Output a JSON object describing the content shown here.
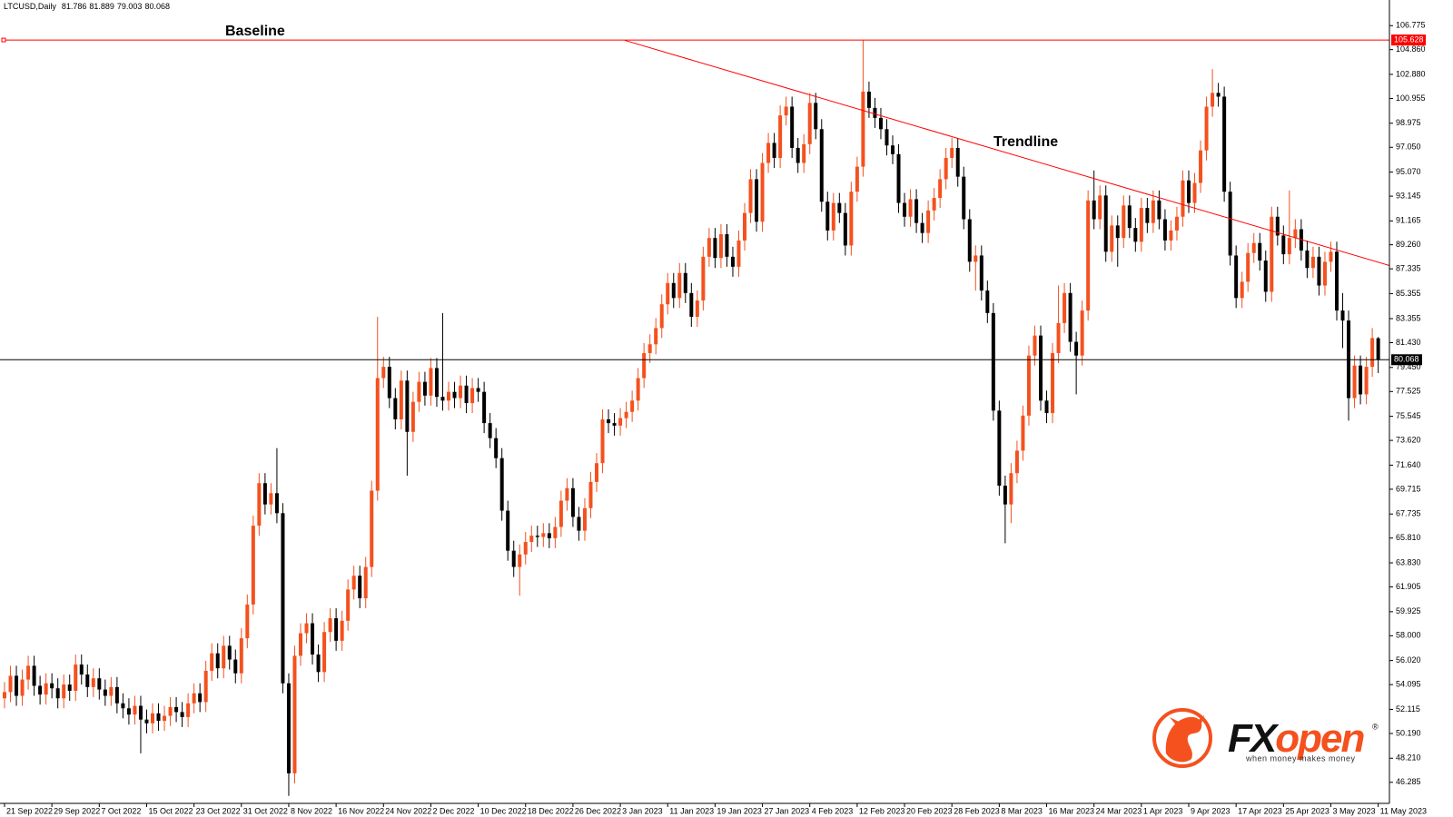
{
  "chart_data": {
    "type": "candlestick",
    "title": "LTCUSD,Daily",
    "header_values": [
      81.786,
      81.889,
      79.003,
      80.068
    ],
    "up_color": "#f4511e",
    "down_color": "#000000",
    "categories": [
      "21 Sep 2022",
      null,
      null,
      null,
      null,
      null,
      null,
      null,
      "29 Sep 2022",
      null,
      null,
      null,
      null,
      null,
      null,
      null,
      "7 Oct 2022",
      null,
      null,
      null,
      null,
      null,
      null,
      null,
      "15 Oct 2022",
      null,
      null,
      null,
      null,
      null,
      null,
      null,
      "23 Oct 2022",
      null,
      null,
      null,
      null,
      null,
      null,
      null,
      "31 Oct 2022",
      null,
      null,
      null,
      null,
      null,
      null,
      null,
      "8 Nov 2022",
      null,
      null,
      null,
      null,
      null,
      null,
      null,
      "16 Nov 2022",
      null,
      null,
      null,
      null,
      null,
      null,
      null,
      "24 Nov 2022",
      null,
      null,
      null,
      null,
      null,
      null,
      null,
      "2 Dec 2022",
      null,
      null,
      null,
      null,
      null,
      null,
      null,
      "10 Dec 2022",
      null,
      null,
      null,
      null,
      null,
      null,
      null,
      "18 Dec 2022",
      null,
      null,
      null,
      null,
      null,
      null,
      null,
      "26 Dec 2022",
      null,
      null,
      null,
      null,
      null,
      null,
      null,
      "3 Jan 2023",
      null,
      null,
      null,
      null,
      null,
      null,
      null,
      "11 Jan 2023",
      null,
      null,
      null,
      null,
      null,
      null,
      null,
      "19 Jan 2023",
      null,
      null,
      null,
      null,
      null,
      null,
      null,
      "27 Jan 2023",
      null,
      null,
      null,
      null,
      null,
      null,
      null,
      "4 Feb 2023",
      null,
      null,
      null,
      null,
      null,
      null,
      null,
      "12 Feb 2023",
      null,
      null,
      null,
      null,
      null,
      null,
      null,
      "20 Feb 2023",
      null,
      null,
      null,
      null,
      null,
      null,
      null,
      "28 Feb 2023",
      null,
      null,
      null,
      null,
      null,
      null,
      null,
      "8 Mar 2023",
      null,
      null,
      null,
      null,
      null,
      null,
      null,
      "16 Mar 2023",
      null,
      null,
      null,
      null,
      null,
      null,
      null,
      "24 Mar 2023",
      null,
      null,
      null,
      null,
      null,
      null,
      null,
      "1 Apr 2023",
      null,
      null,
      null,
      null,
      null,
      null,
      null,
      "9 Apr 2023",
      null,
      null,
      null,
      null,
      null,
      null,
      null,
      "17 Apr 2023",
      null,
      null,
      null,
      null,
      null,
      null,
      null,
      "25 Apr 2023",
      null,
      null,
      null,
      null,
      null,
      null,
      null,
      "3 May 2023",
      null,
      null,
      null,
      null,
      null,
      null,
      null,
      "11 May 2023"
    ],
    "open": [
      53.0,
      53.5,
      54.8,
      53.2,
      54.5,
      55.6,
      54.0,
      53.3,
      54.2,
      53.8,
      53.0,
      54.1,
      53.6,
      55.7,
      54.9,
      53.9,
      54.6,
      53.7,
      53.2,
      53.9,
      52.6,
      52.2,
      51.7,
      52.4,
      51.3,
      51.0,
      51.8,
      51.2,
      51.6,
      52.3,
      51.9,
      51.5,
      52.6,
      53.4,
      52.7,
      55.2,
      56.6,
      55.4,
      57.2,
      56.1,
      55.0,
      57.8,
      60.5,
      66.8,
      70.2,
      68.5,
      69.4,
      67.8,
      54.2,
      47.0,
      56.4,
      58.2,
      59.0,
      56.5,
      55.1,
      58.3,
      59.4,
      57.6,
      59.2,
      61.7,
      62.8,
      61.0,
      63.5,
      69.6,
      78.6,
      79.5,
      77.0,
      75.3,
      78.4,
      74.3,
      76.7,
      78.3,
      77.2,
      79.4,
      77.1,
      76.8,
      77.5,
      77.0,
      78.0,
      76.6,
      77.8,
      77.5,
      75.0,
      73.8,
      72.2,
      68.0,
      64.8,
      63.5,
      64.5,
      65.5,
      66.0,
      65.9,
      66.2,
      65.8,
      66.7,
      68.8,
      69.8,
      67.5,
      66.4,
      68.2,
      70.3,
      71.8,
      75.3,
      75.0,
      74.8,
      75.4,
      75.9,
      76.8,
      78.6,
      80.6,
      81.3,
      82.6,
      84.5,
      86.2,
      85.0,
      87.0,
      85.4,
      83.5,
      84.8,
      88.3,
      89.8,
      88.2,
      90.1,
      88.3,
      87.5,
      89.6,
      91.8,
      94.5,
      91.1,
      95.8,
      97.4,
      96.2,
      99.6,
      100.3,
      97.0,
      95.8,
      97.3,
      100.6,
      98.5,
      92.7,
      90.4,
      92.6,
      91.8,
      89.2,
      93.5,
      95.5,
      101.5,
      100.2,
      99.4,
      98.5,
      97.2,
      96.5,
      92.6,
      91.5,
      92.9,
      91.0,
      90.2,
      92.0,
      93.0,
      94.5,
      96.2,
      97.0,
      94.7,
      91.3,
      87.9,
      88.4,
      85.6,
      83.8,
      76.0,
      70.0,
      68.5,
      71.0,
      72.8,
      75.6,
      80.4,
      82.0,
      76.8,
      75.8,
      80.6,
      83.0,
      85.4,
      81.5,
      80.4,
      84.0,
      92.8,
      91.3,
      93.2,
      88.7,
      90.8,
      89.8,
      92.4,
      90.6,
      89.5,
      92.2,
      91.0,
      92.8,
      91.3,
      89.6,
      90.4,
      91.5,
      94.4,
      92.6,
      94.2,
      96.8,
      100.3,
      101.4,
      101.1,
      93.5,
      88.4,
      85.0,
      86.3,
      88.6,
      89.4,
      88.0,
      85.5,
      91.5,
      90.0,
      88.5,
      89.8,
      90.5,
      88.8,
      87.4,
      88.3,
      86.0,
      87.9,
      88.7,
      84.0,
      83.2,
      77.0,
      79.6,
      77.3,
      79.5,
      81.786
    ],
    "high": [
      54.3,
      55.6,
      55.6,
      55.3,
      56.4,
      56.4,
      54.8,
      55.0,
      55.0,
      54.6,
      54.9,
      54.9,
      56.5,
      56.5,
      55.7,
      55.4,
      55.4,
      54.5,
      54.7,
      54.7,
      53.4,
      53.0,
      53.2,
      53.2,
      52.1,
      52.6,
      52.6,
      52.4,
      53.1,
      53.1,
      52.7,
      53.4,
      54.2,
      54.2,
      56.0,
      57.4,
      57.4,
      58.0,
      58.0,
      56.9,
      58.6,
      61.3,
      67.6,
      71.0,
      71.0,
      70.2,
      73.0,
      68.6,
      55.0,
      57.2,
      59.0,
      59.8,
      59.8,
      57.3,
      59.1,
      60.2,
      60.2,
      60.0,
      62.5,
      63.6,
      63.6,
      64.3,
      70.4,
      83.5,
      80.3,
      80.3,
      77.8,
      79.2,
      79.2,
      77.5,
      79.1,
      79.1,
      80.2,
      80.2,
      83.8,
      78.3,
      78.3,
      78.8,
      78.8,
      78.6,
      78.6,
      78.3,
      75.8,
      74.6,
      73.0,
      68.8,
      65.6,
      65.3,
      66.3,
      66.8,
      66.8,
      67.0,
      67.0,
      67.5,
      69.6,
      70.6,
      70.6,
      68.3,
      69.0,
      71.1,
      72.6,
      76.1,
      76.1,
      75.8,
      76.2,
      76.7,
      77.6,
      79.4,
      81.4,
      82.1,
      83.4,
      85.3,
      87.0,
      87.0,
      87.8,
      87.8,
      86.2,
      85.6,
      89.1,
      90.6,
      90.6,
      90.9,
      90.9,
      89.1,
      90.4,
      92.6,
      95.3,
      95.3,
      96.6,
      98.2,
      98.2,
      100.4,
      101.1,
      101.1,
      97.8,
      98.1,
      101.4,
      101.4,
      99.3,
      93.5,
      93.4,
      93.4,
      92.6,
      94.3,
      96.3,
      105.6,
      102.3,
      101.0,
      100.2,
      99.3,
      98.0,
      97.3,
      93.4,
      93.7,
      93.7,
      91.8,
      92.8,
      93.8,
      95.3,
      97.0,
      97.8,
      97.8,
      95.5,
      92.1,
      89.2,
      89.2,
      86.4,
      84.6,
      76.8,
      70.8,
      71.8,
      73.6,
      76.4,
      81.2,
      82.8,
      82.8,
      77.6,
      81.4,
      86.0,
      86.2,
      86.2,
      82.3,
      84.8,
      93.6,
      95.2,
      94.0,
      94.0,
      91.6,
      91.6,
      93.2,
      93.2,
      91.4,
      93.0,
      93.0,
      93.6,
      93.6,
      92.1,
      91.2,
      92.3,
      95.2,
      95.2,
      95.0,
      97.6,
      101.1,
      103.3,
      102.2,
      101.9,
      94.3,
      89.2,
      87.1,
      89.4,
      90.2,
      90.2,
      88.8,
      92.3,
      92.3,
      90.8,
      93.6,
      91.3,
      91.3,
      89.6,
      89.1,
      89.1,
      88.7,
      89.5,
      89.5,
      85.4,
      84.0,
      80.4,
      80.4,
      80.3,
      82.6,
      81.889
    ],
    "low": [
      52.2,
      52.7,
      52.4,
      52.4,
      53.7,
      53.2,
      52.5,
      52.5,
      53.0,
      52.2,
      52.2,
      52.8,
      52.8,
      54.1,
      53.1,
      53.1,
      52.9,
      52.4,
      52.4,
      51.8,
      51.4,
      50.9,
      50.9,
      48.6,
      50.2,
      50.2,
      50.4,
      50.4,
      50.8,
      51.1,
      50.7,
      50.7,
      51.8,
      51.9,
      51.9,
      54.4,
      54.6,
      54.6,
      55.3,
      54.2,
      54.2,
      57.0,
      59.7,
      66.0,
      67.7,
      67.7,
      67.0,
      53.4,
      45.2,
      46.2,
      55.6,
      57.4,
      55.7,
      54.3,
      54.3,
      57.5,
      56.8,
      56.8,
      58.4,
      60.9,
      60.2,
      60.2,
      62.7,
      68.8,
      77.8,
      76.2,
      74.5,
      74.5,
      70.8,
      73.5,
      75.9,
      76.4,
      76.4,
      76.3,
      76.0,
      76.0,
      76.2,
      76.2,
      75.8,
      75.8,
      76.7,
      74.2,
      73.0,
      71.4,
      67.2,
      64.0,
      62.7,
      61.2,
      63.7,
      64.7,
      65.1,
      65.1,
      65.0,
      65.0,
      65.9,
      68.0,
      66.7,
      65.6,
      65.6,
      67.4,
      69.5,
      71.0,
      74.2,
      74.0,
      74.0,
      74.6,
      75.1,
      76.0,
      77.8,
      79.8,
      80.5,
      81.8,
      83.7,
      84.2,
      84.2,
      84.6,
      82.7,
      82.7,
      84.0,
      87.5,
      87.4,
      87.4,
      87.5,
      86.7,
      86.7,
      88.8,
      91.0,
      90.3,
      90.3,
      95.0,
      95.4,
      95.4,
      98.8,
      96.2,
      95.0,
      95.0,
      96.5,
      97.7,
      91.9,
      89.6,
      89.6,
      91.0,
      88.4,
      88.4,
      92.7,
      94.7,
      99.4,
      98.6,
      97.7,
      96.4,
      95.7,
      91.8,
      90.7,
      90.7,
      90.2,
      89.4,
      89.4,
      91.2,
      92.2,
      93.7,
      95.4,
      93.9,
      90.5,
      87.1,
      85.6,
      84.8,
      83.0,
      75.2,
      69.2,
      65.4,
      67.0,
      70.2,
      72.0,
      74.8,
      79.6,
      76.0,
      75.0,
      75.0,
      79.8,
      82.2,
      80.7,
      77.3,
      79.6,
      83.2,
      90.5,
      90.5,
      87.9,
      87.9,
      87.5,
      89.0,
      89.8,
      88.7,
      88.7,
      90.2,
      90.2,
      90.5,
      88.8,
      88.8,
      89.6,
      90.7,
      91.8,
      91.8,
      93.4,
      96.0,
      99.5,
      100.3,
      92.7,
      87.6,
      84.2,
      84.2,
      85.5,
      87.8,
      87.2,
      84.7,
      84.7,
      89.2,
      87.7,
      87.7,
      89.0,
      88.0,
      86.6,
      86.6,
      85.2,
      85.2,
      87.1,
      83.2,
      81.0,
      75.2,
      76.2,
      76.5,
      76.5,
      78.7,
      79.003
    ],
    "close": [
      53.5,
      54.8,
      53.2,
      54.5,
      55.6,
      54.0,
      53.3,
      54.2,
      53.8,
      53.0,
      54.1,
      53.6,
      55.7,
      54.9,
      53.9,
      54.6,
      53.7,
      53.2,
      53.9,
      52.6,
      52.2,
      51.7,
      52.4,
      51.3,
      51.0,
      51.8,
      51.2,
      51.6,
      52.3,
      51.9,
      51.5,
      52.6,
      53.4,
      52.7,
      55.2,
      56.6,
      55.4,
      57.2,
      56.1,
      55.0,
      57.8,
      60.5,
      66.8,
      70.2,
      68.5,
      69.4,
      67.8,
      54.2,
      47.0,
      56.4,
      58.2,
      59.0,
      56.5,
      55.1,
      58.3,
      59.4,
      57.6,
      59.2,
      61.7,
      62.8,
      61.0,
      63.5,
      69.6,
      78.6,
      79.5,
      77.0,
      75.3,
      78.4,
      74.3,
      76.7,
      78.3,
      77.2,
      79.4,
      77.1,
      76.8,
      77.5,
      77.0,
      78.0,
      76.6,
      77.8,
      77.5,
      75.0,
      73.8,
      72.2,
      68.0,
      64.8,
      63.5,
      64.5,
      65.5,
      66.0,
      65.9,
      66.2,
      65.8,
      66.7,
      68.8,
      69.8,
      67.5,
      66.4,
      68.2,
      70.3,
      71.8,
      75.3,
      75.0,
      74.8,
      75.4,
      75.9,
      76.8,
      78.6,
      80.6,
      81.3,
      82.6,
      84.5,
      86.2,
      85.0,
      87.0,
      85.4,
      83.5,
      84.8,
      88.3,
      89.8,
      88.2,
      90.1,
      88.3,
      87.5,
      89.6,
      91.8,
      94.5,
      91.1,
      95.8,
      97.4,
      96.2,
      99.6,
      100.3,
      97.0,
      95.8,
      97.3,
      100.6,
      98.5,
      92.7,
      90.4,
      92.6,
      91.8,
      89.2,
      93.5,
      95.5,
      101.5,
      100.2,
      99.4,
      98.5,
      97.2,
      96.5,
      92.6,
      91.5,
      92.9,
      91.0,
      90.2,
      92.0,
      93.0,
      94.5,
      96.2,
      97.0,
      94.7,
      91.3,
      87.9,
      88.4,
      85.6,
      83.8,
      76.0,
      70.0,
      68.5,
      71.0,
      72.8,
      75.6,
      80.4,
      82.0,
      76.8,
      75.8,
      80.6,
      83.0,
      85.4,
      81.5,
      80.4,
      84.0,
      92.8,
      91.3,
      93.2,
      88.7,
      90.8,
      89.8,
      92.4,
      90.6,
      89.5,
      92.2,
      91.0,
      92.8,
      91.3,
      89.6,
      90.4,
      91.5,
      94.4,
      92.6,
      94.2,
      96.8,
      100.3,
      101.4,
      101.1,
      93.5,
      88.4,
      85.0,
      86.3,
      88.6,
      89.4,
      88.0,
      85.5,
      91.5,
      90.0,
      88.5,
      89.8,
      90.5,
      88.8,
      87.4,
      88.3,
      86.0,
      87.9,
      88.7,
      84.0,
      83.2,
      77.0,
      79.6,
      77.3,
      79.5,
      81.8,
      80.068
    ],
    "ylim": [
      44.6,
      108.1
    ],
    "yticks": [
      106.775,
      {
        "value": 104.86,
        "label": "104.860"
      },
      {
        "value": 102.88,
        "label": "102.880"
      },
      100.955,
      98.975,
      {
        "value": 97.05,
        "label": "97.050"
      },
      {
        "value": 95.07,
        "label": "95.070"
      },
      93.145,
      91.165,
      {
        "value": 89.26,
        "label": "89.260"
      },
      87.335,
      85.355,
      83.355,
      {
        "value": 81.43,
        "label": "81.430"
      },
      {
        "value": 79.45,
        "label": "79.450"
      },
      77.525,
      75.545,
      {
        "value": 73.62,
        "label": "73.620"
      },
      {
        "value": 71.64,
        "label": "71.640"
      },
      69.715,
      67.735,
      {
        "value": 65.81,
        "label": "65.810"
      },
      {
        "value": 63.83,
        "label": "63.830"
      },
      61.905,
      59.925,
      {
        "value": 58,
        "label": "58.000"
      },
      {
        "value": 56.02,
        "label": "56.020"
      },
      54.095,
      52.115,
      {
        "value": 50.19,
        "label": "50.190"
      },
      {
        "value": 48.21,
        "label": "48.210"
      },
      46.285
    ],
    "baseline": {
      "label": "Baseline",
      "value": 105.628,
      "color": "#ff0000"
    },
    "trendline": {
      "label": "Trendline",
      "values": [
        105.6,
        87.6
      ],
      "color": "#ff0000"
    },
    "last_price": {
      "value": 80.068,
      "color": "#000000"
    }
  },
  "logo": {
    "brand_dark": "FX",
    "brand_accent": "open",
    "registered": "®",
    "tagline": "when money makes money"
  }
}
